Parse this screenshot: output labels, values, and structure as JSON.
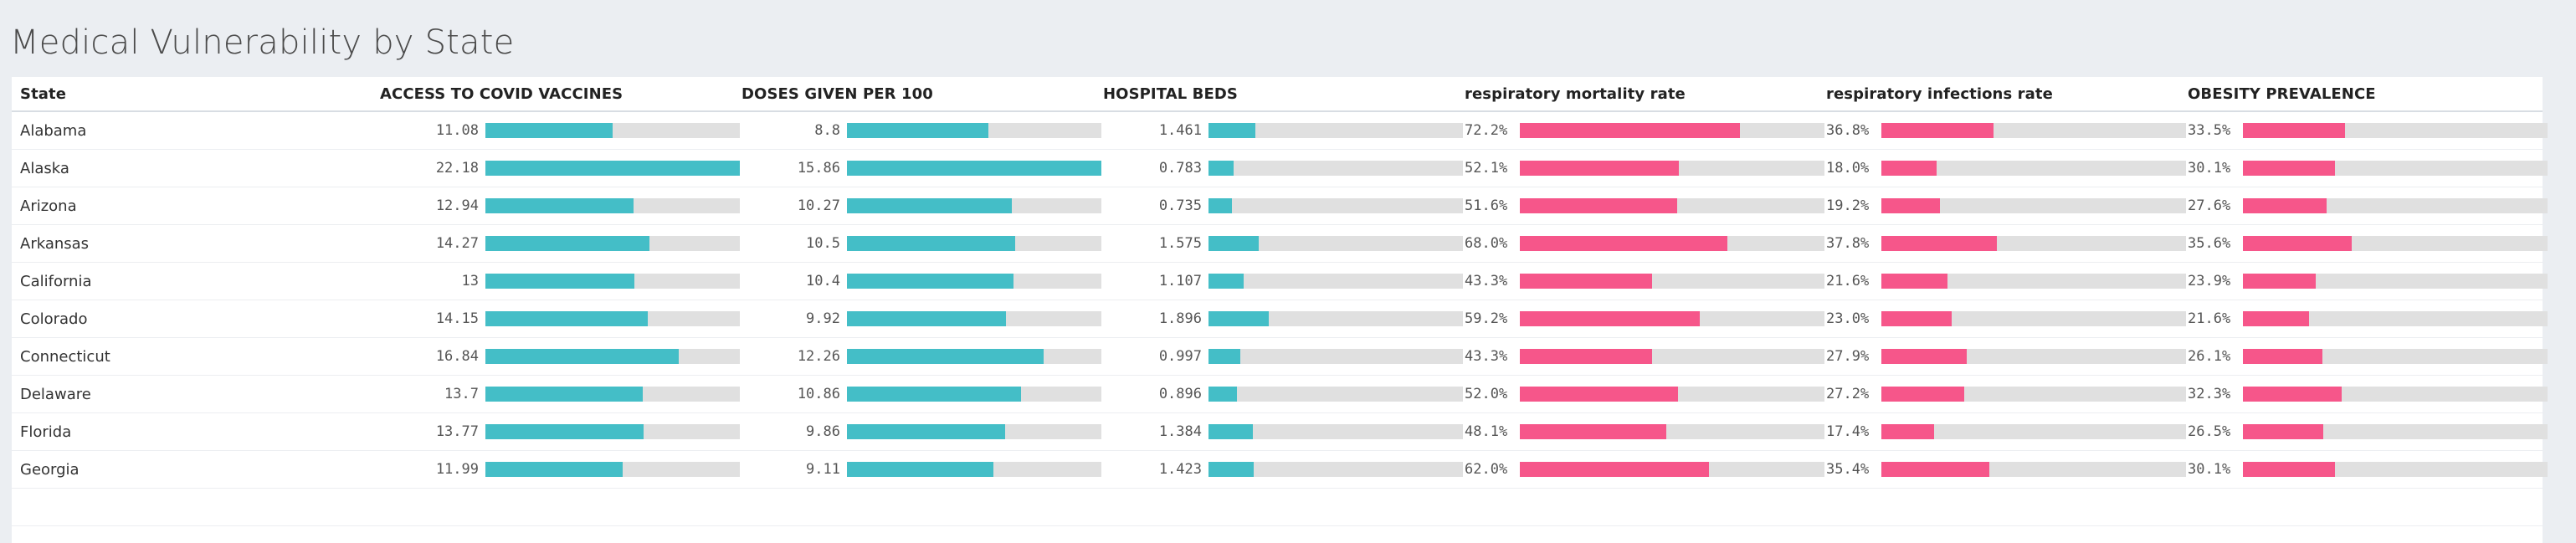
{
  "page": {
    "title": "Medical Vulnerability by State"
  },
  "colors": {
    "background": "#ebeef2",
    "teal_bar": "#44bec7",
    "pink_bar": "#f6568a",
    "bar_track": "#e0e0e0"
  },
  "table": {
    "columns": [
      {
        "label": "State"
      },
      {
        "label": "ACCESS TO COVID VACCINES",
        "max": 22.18,
        "color": "teal",
        "kind": "value"
      },
      {
        "label": "DOSES GIVEN PER 100",
        "max": 15.86,
        "color": "teal",
        "kind": "value"
      },
      {
        "label": "HOSPITAL BEDS",
        "max": 8.0,
        "color": "teal",
        "kind": "value"
      },
      {
        "label": "respiratory mortality rate",
        "max": 100,
        "color": "pink",
        "kind": "percent"
      },
      {
        "label": "respiratory infections rate",
        "max": 100,
        "color": "pink",
        "kind": "percent"
      },
      {
        "label": "OBESITY PREVALENCE",
        "max": 100,
        "color": "pink",
        "kind": "percent"
      }
    ],
    "rows": [
      {
        "state": "Alabama",
        "access": "11.08",
        "doses": "8.8",
        "beds": "1.461",
        "resp_mort": "72.2%",
        "resp_inf": "36.8%",
        "obesity": "33.5%"
      },
      {
        "state": "Alaska",
        "access": "22.18",
        "doses": "15.86",
        "beds": "0.783",
        "resp_mort": "52.1%",
        "resp_inf": "18.0%",
        "obesity": "30.1%"
      },
      {
        "state": "Arizona",
        "access": "12.94",
        "doses": "10.27",
        "beds": "0.735",
        "resp_mort": "51.6%",
        "resp_inf": "19.2%",
        "obesity": "27.6%"
      },
      {
        "state": "Arkansas",
        "access": "14.27",
        "doses": "10.5",
        "beds": "1.575",
        "resp_mort": "68.0%",
        "resp_inf": "37.8%",
        "obesity": "35.6%"
      },
      {
        "state": "California",
        "access": "13",
        "doses": "10.4",
        "beds": "1.107",
        "resp_mort": "43.3%",
        "resp_inf": "21.6%",
        "obesity": "23.9%"
      },
      {
        "state": "Colorado",
        "access": "14.15",
        "doses": "9.92",
        "beds": "1.896",
        "resp_mort": "59.2%",
        "resp_inf": "23.0%",
        "obesity": "21.6%"
      },
      {
        "state": "Connecticut",
        "access": "16.84",
        "doses": "12.26",
        "beds": "0.997",
        "resp_mort": "43.3%",
        "resp_inf": "27.9%",
        "obesity": "26.1%"
      },
      {
        "state": "Delaware",
        "access": "13.7",
        "doses": "10.86",
        "beds": "0.896",
        "resp_mort": "52.0%",
        "resp_inf": "27.2%",
        "obesity": "32.3%"
      },
      {
        "state": "Florida",
        "access": "13.77",
        "doses": "9.86",
        "beds": "1.384",
        "resp_mort": "48.1%",
        "resp_inf": "17.4%",
        "obesity": "26.5%"
      },
      {
        "state": "Georgia",
        "access": "11.99",
        "doses": "9.11",
        "beds": "1.423",
        "resp_mort": "62.0%",
        "resp_inf": "35.4%",
        "obesity": "30.1%"
      }
    ]
  }
}
